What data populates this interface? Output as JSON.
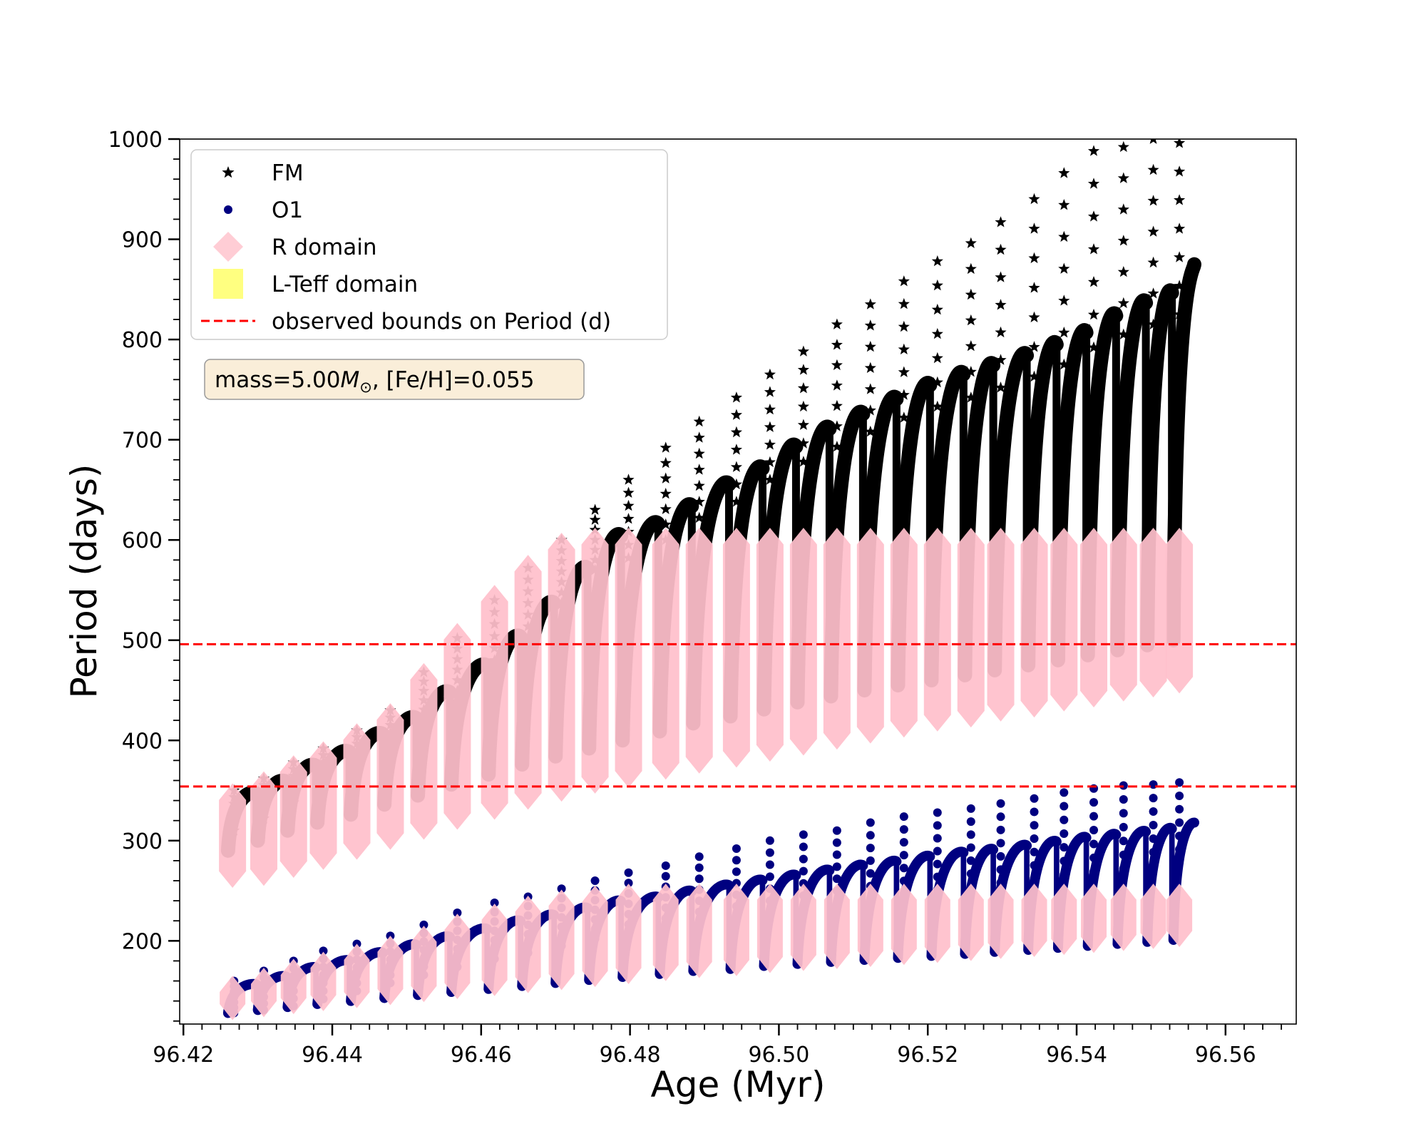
{
  "chart_data": {
    "type": "scatter",
    "xlabel": "Age (Myr)",
    "ylabel": "Period (days)",
    "xlim": [
      96.4195,
      96.5695
    ],
    "ylim": [
      117,
      1000
    ],
    "xticks": [
      "96.42",
      "96.44",
      "96.46",
      "96.48",
      "96.50",
      "96.52",
      "96.54",
      "96.56"
    ],
    "yticks": [
      "200",
      "300",
      "400",
      "500",
      "600",
      "700",
      "800",
      "900",
      "1000"
    ],
    "grid": false,
    "legend_position": "upper-left",
    "legend": [
      {
        "label": "FM",
        "marker": "star",
        "color": "#000000"
      },
      {
        "label": "O1",
        "marker": "circle",
        "color": "#000080"
      },
      {
        "label": "R domain",
        "marker": "diamond",
        "color": "#ffc0cb"
      },
      {
        "label": "L-Teff domain",
        "marker": "square",
        "color": "#ffff80"
      },
      {
        "label": "observed bounds on Period (d)",
        "marker": "dashed-line",
        "color": "#ff0000"
      }
    ],
    "annotation": {
      "prefix": "mass=5.00",
      "symbol": "M",
      "subscript": "⊙",
      "suffix": ", [Fe/H]=0.055"
    },
    "hlines": [
      {
        "y": 496,
        "style": "dashed",
        "color": "#ff0000"
      },
      {
        "y": 354,
        "style": "dashed",
        "color": "#ff0000"
      }
    ],
    "series": [
      {
        "name": "FM",
        "marker": "star",
        "color": "#000000",
        "pulse_x": [
          96.426,
          96.43,
          96.434,
          96.438,
          96.4425,
          96.447,
          96.4515,
          96.456,
          96.461,
          96.4655,
          96.47,
          96.4745,
          96.479,
          96.484,
          96.4885,
          96.4935,
          96.498,
          96.5025,
          96.507,
          96.5115,
          96.516,
          96.5205,
          96.525,
          96.529,
          96.5335,
          96.5375,
          96.5415,
          96.5455,
          96.5495,
          96.553
        ],
        "pulse_top": [
          350,
          362,
          378,
          392,
          410,
          426,
          452,
          479,
          508,
          542,
          577,
          610,
          622,
          640,
          662,
          678,
          700,
          718,
          733,
          748,
          762,
          773,
          782,
          792,
          803,
          815,
          832,
          845,
          855,
          865
        ],
        "pulse_bottom": [
          290,
          300,
          310,
          318,
          326,
          336,
          345,
          356,
          366,
          376,
          384,
          392,
          400,
          409,
          417,
          424,
          431,
          438,
          444,
          450,
          455,
          460,
          465,
          470,
          475,
          480,
          485,
          490,
          495,
          500
        ],
        "spike_peak": [
          350,
          362,
          378,
          392,
          410,
          430,
          468,
          502,
          540,
          572,
          600,
          630,
          660,
          692,
          718,
          742,
          765,
          788,
          815,
          835,
          858,
          878,
          896,
          917,
          940,
          966,
          988,
          992,
          1000,
          996
        ],
        "end_x": 96.556,
        "end_y": 875
      },
      {
        "name": "O1",
        "marker": "circle",
        "color": "#000080",
        "pulse_x": [
          96.426,
          96.43,
          96.434,
          96.438,
          96.4425,
          96.447,
          96.4515,
          96.456,
          96.461,
          96.4655,
          96.47,
          96.4745,
          96.479,
          96.484,
          96.4885,
          96.4935,
          96.498,
          96.5025,
          96.507,
          96.5115,
          96.516,
          96.5205,
          96.525,
          96.529,
          96.5335,
          96.5375,
          96.5415,
          96.5455,
          96.5495,
          96.553
        ],
        "pulse_top": [
          158,
          166,
          175,
          182,
          190,
          198,
          206,
          214,
          222,
          228,
          235,
          242,
          246,
          252,
          258,
          263,
          268,
          273,
          278,
          282,
          287,
          291,
          294,
          298,
          302,
          306,
          309,
          312,
          315,
          318
        ],
        "pulse_bottom": [
          128,
          131,
          134,
          137,
          140,
          143,
          146,
          149,
          152,
          155,
          158,
          161,
          164,
          167,
          170,
          172,
          175,
          177,
          179,
          181,
          183,
          185,
          187,
          189,
          191,
          193,
          195,
          197,
          199,
          201
        ],
        "spike_peak": [
          160,
          170,
          180,
          190,
          197,
          205,
          216,
          228,
          238,
          244,
          252,
          260,
          268,
          275,
          284,
          292,
          300,
          306,
          310,
          318,
          324,
          328,
          332,
          337,
          342,
          348,
          352,
          355,
          356,
          358
        ],
        "end_x": 96.556,
        "end_y": 318
      },
      {
        "name": "R domain",
        "marker": "diamond",
        "color": "#ffc0cb",
        "upper_band": {
          "column_x": [
            96.4258,
            96.43,
            96.434,
            96.438,
            96.4425,
            96.447,
            96.4515,
            96.456,
            96.461,
            96.4655,
            96.47,
            96.4745,
            96.479,
            96.484,
            96.4885,
            96.4935,
            96.498,
            96.5025,
            96.507,
            96.5115,
            96.516,
            96.5205,
            96.525,
            96.529,
            96.5335,
            96.5375,
            96.5415,
            96.5455,
            96.5495,
            96.553
          ],
          "column_top": [
            350,
            362,
            378,
            392,
            410,
            430,
            470,
            510,
            548,
            578,
            600,
            605,
            605,
            605,
            605,
            605,
            605,
            605,
            605,
            605,
            605,
            605,
            605,
            605,
            605,
            605,
            605,
            605,
            605,
            605
          ],
          "column_bottom": [
            260,
            262,
            270,
            278,
            288,
            298,
            308,
            318,
            328,
            338,
            346,
            354,
            360,
            368,
            374,
            380,
            386,
            392,
            398,
            404,
            410,
            416,
            420,
            426,
            430,
            436,
            440,
            446,
            450,
            454
          ]
        },
        "lower_band": {
          "column_x": [
            96.4258,
            96.43,
            96.434,
            96.438,
            96.4425,
            96.447,
            96.4515,
            96.456,
            96.461,
            96.4655,
            96.47,
            96.4745,
            96.479,
            96.484,
            96.4885,
            96.4935,
            96.498,
            96.5025,
            96.507,
            96.5115,
            96.516,
            96.5205,
            96.525,
            96.529,
            96.5335,
            96.5375,
            96.5415,
            96.5455,
            96.5495,
            96.553
          ],
          "column_top": [
            158,
            166,
            175,
            182,
            190,
            198,
            208,
            220,
            230,
            238,
            244,
            248,
            250,
            250,
            250,
            250,
            250,
            250,
            250,
            250,
            250,
            250,
            250,
            250,
            250,
            250,
            250,
            250,
            250,
            250
          ],
          "column_bottom": [
            128,
            131,
            134,
            137,
            140,
            143,
            146,
            149,
            152,
            155,
            158,
            161,
            164,
            167,
            170,
            172,
            175,
            177,
            179,
            181,
            183,
            185,
            187,
            189,
            191,
            193,
            195,
            197,
            199,
            201
          ]
        }
      }
    ]
  }
}
